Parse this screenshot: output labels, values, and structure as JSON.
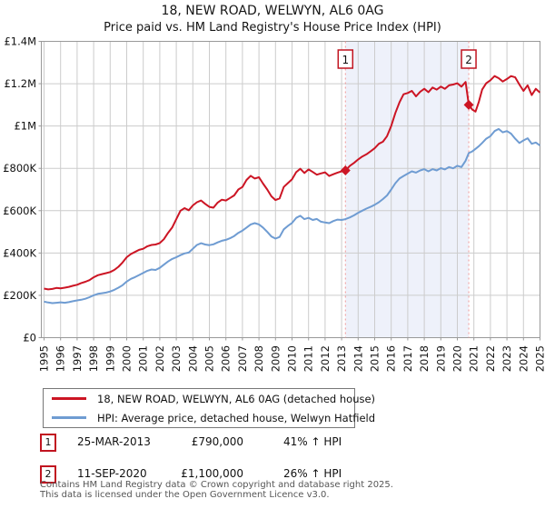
{
  "title": "18, NEW ROAD, WELWYN, AL6 0AG",
  "subtitle": "Price paid vs. HM Land Registry's House Price Index (HPI)",
  "colors": {
    "property_line": "#cc1524",
    "hpi_line": "#6f9cd2",
    "sale_dashed": "#f09898",
    "band": "#eef1fa",
    "annotation_box_border": "#c11420",
    "grid": "#cccccc",
    "plot_border": "#999999"
  },
  "chart_data": {
    "type": "line",
    "unit": "GBP thousands",
    "xlim": [
      1995,
      2025
    ],
    "ylim": [
      0,
      1400
    ],
    "grid": true,
    "legend_position": "below",
    "y_ticks": [
      [
        0,
        "£0"
      ],
      [
        200,
        "£200K"
      ],
      [
        400,
        "£400K"
      ],
      [
        600,
        "£600K"
      ],
      [
        800,
        "£800K"
      ],
      [
        1000,
        "£1M"
      ],
      [
        1200,
        "£1.2M"
      ],
      [
        1400,
        "£1.4M"
      ]
    ],
    "x_ticks": [
      "1995",
      "1996",
      "1997",
      "1998",
      "1999",
      "2000",
      "2001",
      "2002",
      "2003",
      "2004",
      "2005",
      "2006",
      "2007",
      "2008",
      "2009",
      "2010",
      "2011",
      "2012",
      "2013",
      "2014",
      "2015",
      "2016",
      "2017",
      "2018",
      "2019",
      "2020",
      "2021",
      "2022",
      "2023",
      "2024",
      "2025"
    ],
    "sales": [
      {
        "label": "1",
        "year": 2013.23,
        "price": 790000
      },
      {
        "label": "2",
        "year": 2020.69,
        "price": 1100000
      }
    ],
    "series": [
      {
        "name": "18, NEW ROAD, WELWYN, AL6 0AG (detached house)",
        "color": "#cc1524",
        "points": [
          [
            1995,
            232
          ],
          [
            1995.25,
            228
          ],
          [
            1995.5,
            230
          ],
          [
            1995.75,
            235
          ],
          [
            1996,
            233
          ],
          [
            1996.25,
            236
          ],
          [
            1996.5,
            240
          ],
          [
            1996.75,
            245
          ],
          [
            1997,
            250
          ],
          [
            1997.25,
            258
          ],
          [
            1997.5,
            264
          ],
          [
            1997.75,
            272
          ],
          [
            1998,
            285
          ],
          [
            1998.25,
            295
          ],
          [
            1998.5,
            300
          ],
          [
            1998.75,
            305
          ],
          [
            1999,
            310
          ],
          [
            1999.25,
            320
          ],
          [
            1999.5,
            335
          ],
          [
            1999.75,
            355
          ],
          [
            2000,
            380
          ],
          [
            2000.25,
            395
          ],
          [
            2000.5,
            405
          ],
          [
            2000.75,
            415
          ],
          [
            2001,
            420
          ],
          [
            2001.25,
            432
          ],
          [
            2001.5,
            438
          ],
          [
            2001.75,
            440
          ],
          [
            2002,
            447
          ],
          [
            2002.25,
            465
          ],
          [
            2002.5,
            495
          ],
          [
            2002.75,
            520
          ],
          [
            2003,
            560
          ],
          [
            2003.25,
            600
          ],
          [
            2003.5,
            612
          ],
          [
            2003.75,
            602
          ],
          [
            2004,
            625
          ],
          [
            2004.25,
            640
          ],
          [
            2004.5,
            648
          ],
          [
            2004.75,
            632
          ],
          [
            2005,
            618
          ],
          [
            2005.25,
            614
          ],
          [
            2005.5,
            638
          ],
          [
            2005.75,
            652
          ],
          [
            2006,
            648
          ],
          [
            2006.25,
            660
          ],
          [
            2006.5,
            672
          ],
          [
            2006.75,
            700
          ],
          [
            2007,
            712
          ],
          [
            2007.25,
            745
          ],
          [
            2007.5,
            765
          ],
          [
            2007.75,
            752
          ],
          [
            2008,
            758
          ],
          [
            2008.25,
            728
          ],
          [
            2008.5,
            700
          ],
          [
            2008.75,
            668
          ],
          [
            2009,
            650
          ],
          [
            2009.25,
            658
          ],
          [
            2009.5,
            712
          ],
          [
            2009.75,
            730
          ],
          [
            2010,
            748
          ],
          [
            2010.25,
            782
          ],
          [
            2010.5,
            798
          ],
          [
            2010.75,
            778
          ],
          [
            2011,
            795
          ],
          [
            2011.25,
            783
          ],
          [
            2011.5,
            770
          ],
          [
            2011.75,
            776
          ],
          [
            2012,
            781
          ],
          [
            2012.25,
            764
          ],
          [
            2012.5,
            772
          ],
          [
            2012.75,
            780
          ],
          [
            2013,
            786
          ],
          [
            2013.23,
            790
          ],
          [
            2013.5,
            812
          ],
          [
            2013.75,
            826
          ],
          [
            2014,
            842
          ],
          [
            2014.25,
            856
          ],
          [
            2014.5,
            866
          ],
          [
            2014.75,
            880
          ],
          [
            2015,
            895
          ],
          [
            2015.25,
            916
          ],
          [
            2015.5,
            926
          ],
          [
            2015.75,
            952
          ],
          [
            2016,
            1000
          ],
          [
            2016.25,
            1062
          ],
          [
            2016.5,
            1112
          ],
          [
            2016.75,
            1150
          ],
          [
            2017,
            1156
          ],
          [
            2017.25,
            1166
          ],
          [
            2017.5,
            1140
          ],
          [
            2017.75,
            1162
          ],
          [
            2018,
            1176
          ],
          [
            2018.25,
            1160
          ],
          [
            2018.5,
            1182
          ],
          [
            2018.75,
            1172
          ],
          [
            2019,
            1186
          ],
          [
            2019.25,
            1176
          ],
          [
            2019.5,
            1192
          ],
          [
            2019.75,
            1196
          ],
          [
            2020,
            1202
          ],
          [
            2020.25,
            1186
          ],
          [
            2020.5,
            1208
          ],
          [
            2020.69,
            1100
          ],
          [
            2020.9,
            1078
          ],
          [
            2021.1,
            1068
          ],
          [
            2021.3,
            1115
          ],
          [
            2021.5,
            1172
          ],
          [
            2021.75,
            1202
          ],
          [
            2022,
            1216
          ],
          [
            2022.25,
            1236
          ],
          [
            2022.5,
            1226
          ],
          [
            2022.75,
            1210
          ],
          [
            2023,
            1222
          ],
          [
            2023.25,
            1236
          ],
          [
            2023.5,
            1230
          ],
          [
            2023.75,
            1196
          ],
          [
            2024,
            1166
          ],
          [
            2024.25,
            1192
          ],
          [
            2024.5,
            1146
          ],
          [
            2024.75,
            1176
          ],
          [
            2025,
            1158
          ]
        ]
      },
      {
        "name": "HPI: Average price, detached house, Welwyn Hatfield",
        "color": "#6f9cd2",
        "points": [
          [
            1995,
            170
          ],
          [
            1995.25,
            166
          ],
          [
            1995.5,
            163
          ],
          [
            1995.75,
            165
          ],
          [
            1996,
            167
          ],
          [
            1996.25,
            165
          ],
          [
            1996.5,
            168
          ],
          [
            1996.75,
            172
          ],
          [
            1997,
            176
          ],
          [
            1997.25,
            179
          ],
          [
            1997.5,
            184
          ],
          [
            1997.75,
            191
          ],
          [
            1998,
            200
          ],
          [
            1998.25,
            207
          ],
          [
            1998.5,
            210
          ],
          [
            1998.75,
            213
          ],
          [
            1999,
            218
          ],
          [
            1999.25,
            226
          ],
          [
            1999.5,
            236
          ],
          [
            1999.75,
            248
          ],
          [
            2000,
            265
          ],
          [
            2000.25,
            278
          ],
          [
            2000.5,
            286
          ],
          [
            2000.75,
            296
          ],
          [
            2001,
            306
          ],
          [
            2001.25,
            316
          ],
          [
            2001.5,
            322
          ],
          [
            2001.75,
            320
          ],
          [
            2002,
            330
          ],
          [
            2002.25,
            345
          ],
          [
            2002.5,
            360
          ],
          [
            2002.75,
            372
          ],
          [
            2003,
            380
          ],
          [
            2003.25,
            390
          ],
          [
            2003.5,
            398
          ],
          [
            2003.75,
            402
          ],
          [
            2004,
            420
          ],
          [
            2004.25,
            438
          ],
          [
            2004.5,
            446
          ],
          [
            2004.75,
            440
          ],
          [
            2005,
            437
          ],
          [
            2005.25,
            441
          ],
          [
            2005.5,
            450
          ],
          [
            2005.75,
            458
          ],
          [
            2006,
            462
          ],
          [
            2006.25,
            470
          ],
          [
            2006.5,
            480
          ],
          [
            2006.75,
            495
          ],
          [
            2007,
            506
          ],
          [
            2007.25,
            520
          ],
          [
            2007.5,
            535
          ],
          [
            2007.75,
            541
          ],
          [
            2008,
            535
          ],
          [
            2008.25,
            520
          ],
          [
            2008.5,
            500
          ],
          [
            2008.75,
            478
          ],
          [
            2009,
            468
          ],
          [
            2009.25,
            476
          ],
          [
            2009.5,
            512
          ],
          [
            2009.75,
            528
          ],
          [
            2010,
            542
          ],
          [
            2010.25,
            566
          ],
          [
            2010.5,
            576
          ],
          [
            2010.75,
            560
          ],
          [
            2011,
            566
          ],
          [
            2011.25,
            556
          ],
          [
            2011.5,
            561
          ],
          [
            2011.75,
            548
          ],
          [
            2012,
            544
          ],
          [
            2012.25,
            541
          ],
          [
            2012.5,
            551
          ],
          [
            2012.75,
            558
          ],
          [
            2013,
            556
          ],
          [
            2013.23,
            560
          ],
          [
            2013.5,
            568
          ],
          [
            2013.75,
            578
          ],
          [
            2014,
            590
          ],
          [
            2014.25,
            600
          ],
          [
            2014.5,
            610
          ],
          [
            2014.75,
            618
          ],
          [
            2015,
            628
          ],
          [
            2015.25,
            640
          ],
          [
            2015.5,
            655
          ],
          [
            2015.75,
            672
          ],
          [
            2016,
            700
          ],
          [
            2016.25,
            730
          ],
          [
            2016.5,
            752
          ],
          [
            2016.75,
            764
          ],
          [
            2017,
            775
          ],
          [
            2017.25,
            786
          ],
          [
            2017.5,
            780
          ],
          [
            2017.75,
            790
          ],
          [
            2018,
            796
          ],
          [
            2018.25,
            786
          ],
          [
            2018.5,
            796
          ],
          [
            2018.75,
            790
          ],
          [
            2019,
            801
          ],
          [
            2019.25,
            795
          ],
          [
            2019.5,
            806
          ],
          [
            2019.75,
            800
          ],
          [
            2020,
            812
          ],
          [
            2020.25,
            806
          ],
          [
            2020.5,
            836
          ],
          [
            2020.69,
            872
          ],
          [
            2020.9,
            880
          ],
          [
            2021.1,
            892
          ],
          [
            2021.3,
            905
          ],
          [
            2021.5,
            920
          ],
          [
            2021.75,
            940
          ],
          [
            2022,
            952
          ],
          [
            2022.25,
            976
          ],
          [
            2022.5,
            986
          ],
          [
            2022.75,
            970
          ],
          [
            2023,
            976
          ],
          [
            2023.25,
            964
          ],
          [
            2023.5,
            940
          ],
          [
            2023.75,
            920
          ],
          [
            2024,
            932
          ],
          [
            2024.25,
            942
          ],
          [
            2024.5,
            916
          ],
          [
            2024.75,
            922
          ],
          [
            2025,
            908
          ]
        ]
      }
    ]
  },
  "annotations": [
    {
      "num": "1",
      "date": "25-MAR-2013",
      "price": "£790,000",
      "vs_hpi": "41% ↑ HPI"
    },
    {
      "num": "2",
      "date": "11-SEP-2020",
      "price": "£1,100,000",
      "vs_hpi": "26% ↑ HPI"
    }
  ],
  "footer": {
    "line1": "Contains HM Land Registry data © Crown copyright and database right 2025.",
    "line2": "This data is licensed under the Open Government Licence v3.0."
  }
}
